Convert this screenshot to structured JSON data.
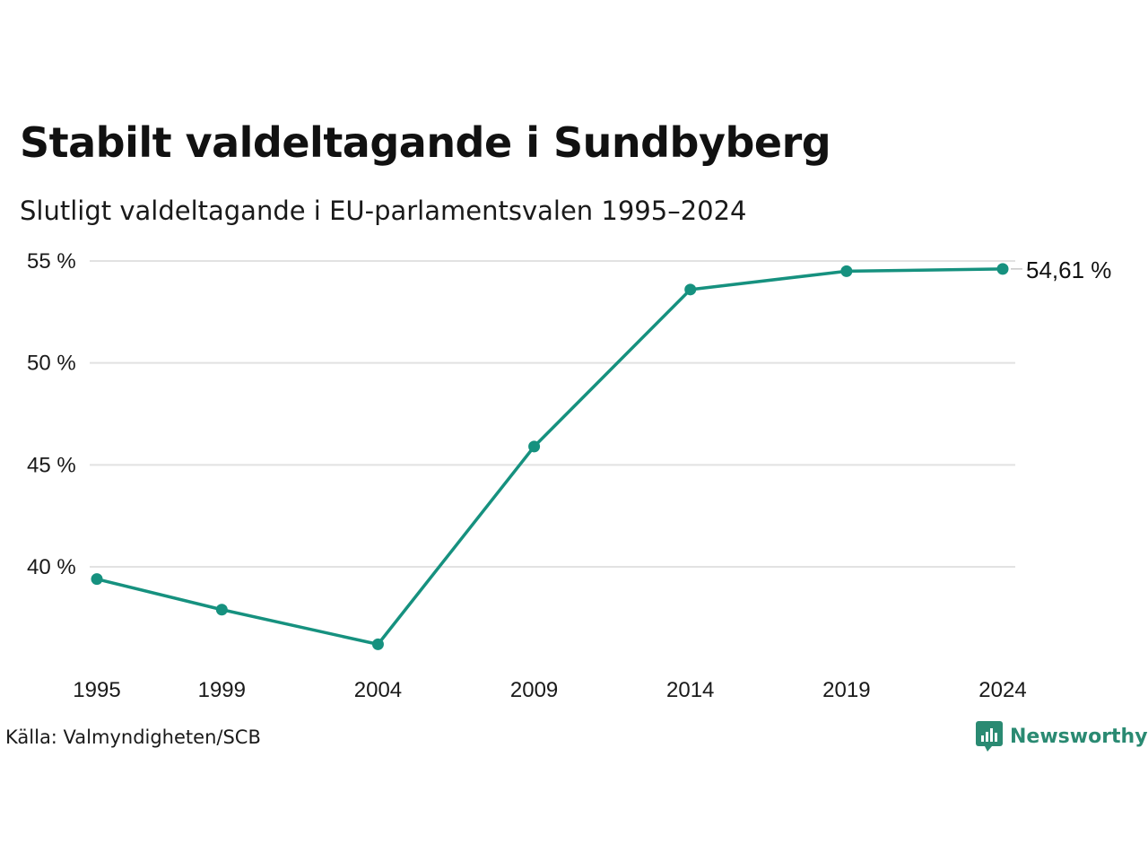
{
  "title": "Stabilt valdeltagande i Sundbyberg",
  "subtitle": "Slutligt valdeltagande i EU-parlamentsvalen 1995–2024",
  "source": "Källa: Valmyndigheten/SCB",
  "brand": "Newsworthy",
  "colors": {
    "line": "#16917f",
    "grid": "#e2e2e2",
    "brand": "#2a8a72"
  },
  "chart_data": {
    "type": "line",
    "title": "Stabilt valdeltagande i Sundbyberg",
    "subtitle": "Slutligt valdeltagande i EU-parlamentsvalen 1995–2024",
    "x": [
      1995,
      1999,
      2004,
      2009,
      2014,
      2019,
      2024
    ],
    "series": [
      {
        "values": [
          39.4,
          37.9,
          36.2,
          45.9,
          53.6,
          54.5,
          54.61
        ]
      }
    ],
    "yticks": [
      40,
      45,
      50,
      55
    ],
    "ytick_labels": [
      "40 %",
      "45 %",
      "50 %",
      "55 %"
    ],
    "xtick_labels": [
      "1995",
      "1999",
      "2004",
      "2009",
      "2014",
      "2019",
      "2024"
    ],
    "ylim": [
      35,
      55
    ],
    "end_label": "54,61 %",
    "grid": true,
    "xlabel": "",
    "ylabel": ""
  }
}
